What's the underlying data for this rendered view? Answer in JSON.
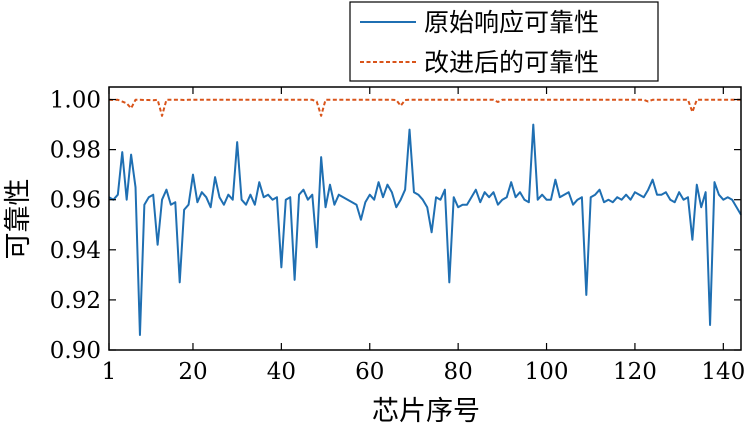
{
  "chart_data": {
    "type": "line",
    "title": "",
    "xlabel": "芯片序号",
    "ylabel": "可靠性",
    "xlim": [
      1,
      144
    ],
    "ylim": [
      0.9,
      1.005
    ],
    "xticks": [
      1,
      20,
      40,
      60,
      80,
      100,
      120,
      140
    ],
    "xtick_labels": [
      "1",
      "20",
      "40",
      "60",
      "80",
      "100",
      "120",
      "140"
    ],
    "yticks": [
      0.9,
      0.92,
      0.94,
      0.96,
      0.98,
      1.0
    ],
    "ytick_labels": [
      "0.90",
      "0.92",
      "0.94",
      "0.96",
      "0.98",
      "1.00"
    ],
    "grid": false,
    "legend_position": "top-right",
    "x": [
      1,
      2,
      3,
      4,
      5,
      6,
      7,
      8,
      9,
      10,
      11,
      12,
      13,
      14,
      15,
      16,
      17,
      18,
      19,
      20,
      21,
      22,
      23,
      24,
      25,
      26,
      27,
      28,
      29,
      30,
      31,
      32,
      33,
      34,
      35,
      36,
      37,
      38,
      39,
      40,
      41,
      42,
      43,
      44,
      45,
      46,
      47,
      48,
      49,
      50,
      51,
      52,
      53,
      54,
      55,
      56,
      57,
      58,
      59,
      60,
      61,
      62,
      63,
      64,
      65,
      66,
      67,
      68,
      69,
      70,
      71,
      72,
      73,
      74,
      75,
      76,
      77,
      78,
      79,
      80,
      81,
      82,
      83,
      84,
      85,
      86,
      87,
      88,
      89,
      90,
      91,
      92,
      93,
      94,
      95,
      96,
      97,
      98,
      99,
      100,
      101,
      102,
      103,
      104,
      105,
      106,
      107,
      108,
      109,
      110,
      111,
      112,
      113,
      114,
      115,
      116,
      117,
      118,
      119,
      120,
      121,
      122,
      123,
      124,
      125,
      126,
      127,
      128,
      129,
      130,
      131,
      132,
      133,
      134,
      135,
      136,
      137,
      138,
      139,
      140,
      141,
      142,
      143,
      144
    ],
    "series": [
      {
        "name": "原始响应可靠性",
        "color": "#1f6fb2",
        "style": "solid",
        "values": [
          0.961,
          0.96,
          0.962,
          0.979,
          0.96,
          0.978,
          0.965,
          0.906,
          0.958,
          0.961,
          0.962,
          0.942,
          0.96,
          0.964,
          0.958,
          0.959,
          0.927,
          0.956,
          0.958,
          0.97,
          0.959,
          0.963,
          0.961,
          0.957,
          0.969,
          0.961,
          0.958,
          0.962,
          0.96,
          0.983,
          0.96,
          0.958,
          0.962,
          0.958,
          0.967,
          0.961,
          0.962,
          0.96,
          0.961,
          0.933,
          0.96,
          0.961,
          0.928,
          0.962,
          0.964,
          0.96,
          0.962,
          0.941,
          0.977,
          0.957,
          0.966,
          0.958,
          0.962,
          0.961,
          0.96,
          0.959,
          0.958,
          0.952,
          0.959,
          0.962,
          0.96,
          0.967,
          0.961,
          0.966,
          0.963,
          0.957,
          0.96,
          0.964,
          0.988,
          0.963,
          0.962,
          0.96,
          0.957,
          0.947,
          0.961,
          0.96,
          0.964,
          0.927,
          0.961,
          0.957,
          0.958,
          0.958,
          0.961,
          0.964,
          0.959,
          0.963,
          0.961,
          0.963,
          0.958,
          0.96,
          0.961,
          0.967,
          0.961,
          0.963,
          0.96,
          0.959,
          0.99,
          0.96,
          0.962,
          0.96,
          0.96,
          0.968,
          0.961,
          0.962,
          0.963,
          0.958,
          0.96,
          0.961,
          0.922,
          0.961,
          0.962,
          0.964,
          0.959,
          0.96,
          0.959,
          0.961,
          0.96,
          0.962,
          0.96,
          0.963,
          0.962,
          0.961,
          0.964,
          0.968,
          0.962,
          0.962,
          0.963,
          0.96,
          0.959,
          0.963,
          0.96,
          0.961,
          0.944,
          0.966,
          0.957,
          0.963,
          0.91,
          0.967,
          0.962,
          0.96,
          0.961,
          0.96,
          0.957,
          0.954
        ]
      },
      {
        "name": "改进后的可靠性",
        "color": "#d9541a",
        "style": "dashed",
        "values": [
          0.9999,
          0.9998,
          0.9999,
          0.9992,
          0.9985,
          0.9965,
          0.9999,
          0.9999,
          0.9998,
          0.9998,
          0.9997,
          0.9999,
          0.9935,
          0.9999,
          0.9999,
          0.9999,
          0.9999,
          0.9998,
          0.9999,
          0.9999,
          0.9999,
          0.9999,
          0.9999,
          0.9999,
          0.9999,
          0.9999,
          0.9999,
          0.9999,
          0.9999,
          0.9999,
          0.9999,
          0.9999,
          0.9999,
          0.9999,
          0.9999,
          0.9999,
          0.9999,
          0.9999,
          0.9999,
          0.9999,
          0.9999,
          0.9999,
          0.9999,
          0.9999,
          0.9999,
          0.9999,
          0.9999,
          0.9992,
          0.9935,
          0.9999,
          0.9999,
          0.9999,
          0.9999,
          0.9999,
          0.9999,
          0.9999,
          0.9999,
          0.9999,
          0.9999,
          0.9999,
          0.9999,
          0.9999,
          0.9999,
          0.9999,
          0.9999,
          0.9998,
          0.9975,
          0.9998,
          0.9999,
          0.9999,
          0.9999,
          0.9999,
          0.9999,
          0.9999,
          0.9999,
          0.9999,
          0.9999,
          0.9999,
          0.9999,
          0.9999,
          0.9999,
          0.9999,
          0.9999,
          0.9999,
          0.9999,
          0.9999,
          0.9999,
          0.9999,
          0.999,
          0.9999,
          0.9999,
          0.9999,
          0.9999,
          0.9999,
          0.9999,
          0.9999,
          0.9999,
          0.9999,
          0.9999,
          0.9999,
          0.9999,
          0.9999,
          0.9999,
          0.9999,
          0.9999,
          0.9999,
          0.9999,
          0.9999,
          0.9999,
          0.9999,
          0.9999,
          0.9999,
          0.9999,
          0.9999,
          0.9999,
          0.9999,
          0.9999,
          0.9999,
          0.9999,
          0.9999,
          0.9999,
          0.9999,
          0.9992,
          0.9999,
          0.9999,
          0.9999,
          0.9999,
          0.9999,
          0.9999,
          0.9999,
          0.9999,
          0.9999,
          0.995,
          0.9999,
          0.9999,
          0.9999,
          0.9999,
          0.9999,
          0.9999,
          0.9999,
          0.9999,
          0.9999,
          0.9999,
          0.9999
        ]
      }
    ]
  }
}
